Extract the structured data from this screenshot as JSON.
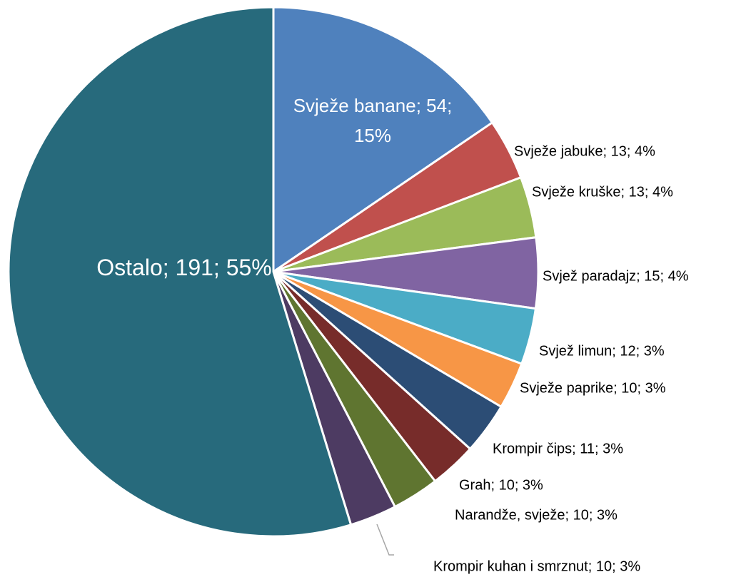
{
  "chart_data": {
    "type": "pie",
    "values": [
      54,
      13,
      13,
      15,
      12,
      10,
      11,
      10,
      10,
      10,
      191
    ],
    "value_labels": [
      "Svježe banane; 54; 15%",
      "Svježe jabuke; 13; 4%",
      "Svježe kruške; 13; 4%",
      "Svjež paradajz; 15; 4%",
      "Svjež limun; 12; 3%",
      "Svježe paprike; 10; 3%",
      "Krompir čips; 11; 3%",
      "Grah; 10; 3%",
      "Narandže, svježe; 10; 3%",
      "Krompir kuhan i smrznut; 10; 3%",
      "Ostalo; 191; 55%"
    ],
    "colors": [
      "#4f81bd",
      "#c0504d",
      "#9bbb59",
      "#8064a2",
      "#4bacc6",
      "#f79646",
      "#2c4d75",
      "#772c2a",
      "#5f7530",
      "#4d3b62",
      "#276a7c"
    ]
  }
}
